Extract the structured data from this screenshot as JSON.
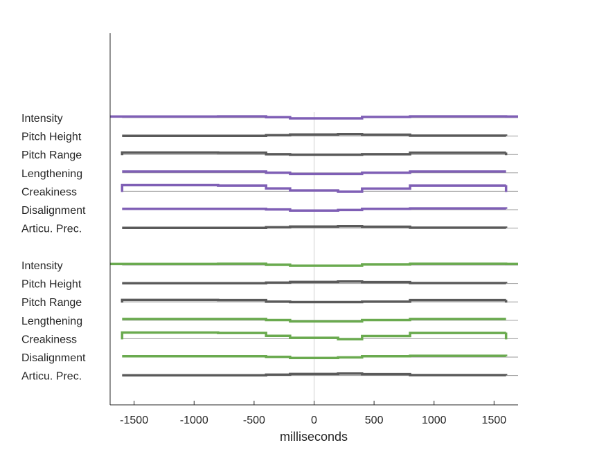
{
  "chart_data": {
    "type": "line",
    "xlabel": "milliseconds",
    "ylabel": "",
    "title": "",
    "xlim": [
      -1700,
      1700
    ],
    "x_ticks": [
      -1500,
      -1000,
      -500,
      0,
      500,
      1000,
      1500
    ],
    "x_tick_labels": [
      "-1500",
      "-1000",
      "-500",
      "0",
      "500",
      "1000",
      "1500"
    ],
    "colors": {
      "purple": "#7f5fb5",
      "green": "#6aaa4f",
      "gray": "#5a5a5a",
      "axis": "#262626",
      "baseline": "#9a9a9a",
      "zero_line": "#d0d0d0"
    },
    "segment_edges_ms": [
      -1600,
      -800,
      -400,
      -200,
      200,
      400,
      800,
      1600
    ],
    "groups": [
      {
        "rows": [
          {
            "label": "Intensity",
            "color": "purple",
            "values": [
              0.5,
              0.6,
              0.2,
              -0.3,
              -0.3,
              0.3,
              0.6,
              0.5
            ],
            "extends_to_edge": true
          },
          {
            "label": "Pitch Height",
            "color": "gray",
            "values": [
              0.1,
              0.1,
              0.4,
              0.7,
              0.9,
              0.6,
              0.2,
              0.1
            ]
          },
          {
            "label": "Pitch Range",
            "color": "gray",
            "values": [
              0.9,
              0.8,
              0.1,
              -0.1,
              -0.1,
              0.1,
              0.8,
              0.9
            ],
            "end_caps": true
          },
          {
            "label": "Lengthening",
            "color": "purple",
            "values": [
              0.6,
              0.6,
              0.1,
              -0.5,
              -0.5,
              0.1,
              0.6,
              0.6
            ]
          },
          {
            "label": "Creakiness",
            "color": "purple",
            "values": [
              2.8,
              2.6,
              1.3,
              0.4,
              -0.2,
              1.2,
              2.6,
              2.8
            ],
            "end_caps": true
          },
          {
            "label": "Disalignment",
            "color": "purple",
            "values": [
              0.4,
              0.4,
              0.1,
              -0.4,
              -0.1,
              0.4,
              0.6,
              0.4
            ]
          },
          {
            "label": "Articu. Prec.",
            "color": "gray",
            "values": [
              0.1,
              0.1,
              0.4,
              0.7,
              0.9,
              0.6,
              0.2,
              0.1
            ]
          }
        ]
      },
      {
        "rows": [
          {
            "label": "Intensity",
            "color": "green",
            "values": [
              0.5,
              0.6,
              0.2,
              -0.3,
              -0.3,
              0.3,
              0.6,
              0.5
            ],
            "extends_to_edge": true
          },
          {
            "label": "Pitch Height",
            "color": "gray",
            "values": [
              0.1,
              0.1,
              0.4,
              0.7,
              0.9,
              0.6,
              0.2,
              0.1
            ]
          },
          {
            "label": "Pitch Range",
            "color": "gray",
            "values": [
              0.9,
              0.8,
              0.1,
              -0.1,
              -0.1,
              0.1,
              0.8,
              0.9
            ],
            "end_caps": true
          },
          {
            "label": "Lengthening",
            "color": "green",
            "values": [
              0.6,
              0.6,
              0.1,
              -0.5,
              -0.5,
              0.1,
              0.6,
              0.6
            ]
          },
          {
            "label": "Creakiness",
            "color": "green",
            "values": [
              2.8,
              2.6,
              1.3,
              0.4,
              -0.2,
              1.2,
              2.6,
              2.8
            ],
            "end_caps": true
          },
          {
            "label": "Disalignment",
            "color": "green",
            "values": [
              0.4,
              0.4,
              0.1,
              -0.4,
              -0.1,
              0.4,
              0.6,
              0.4
            ]
          },
          {
            "label": "Articu. Prec.",
            "color": "gray",
            "values": [
              0.1,
              0.1,
              0.4,
              0.7,
              0.9,
              0.6,
              0.2,
              0.1
            ]
          }
        ]
      }
    ]
  }
}
